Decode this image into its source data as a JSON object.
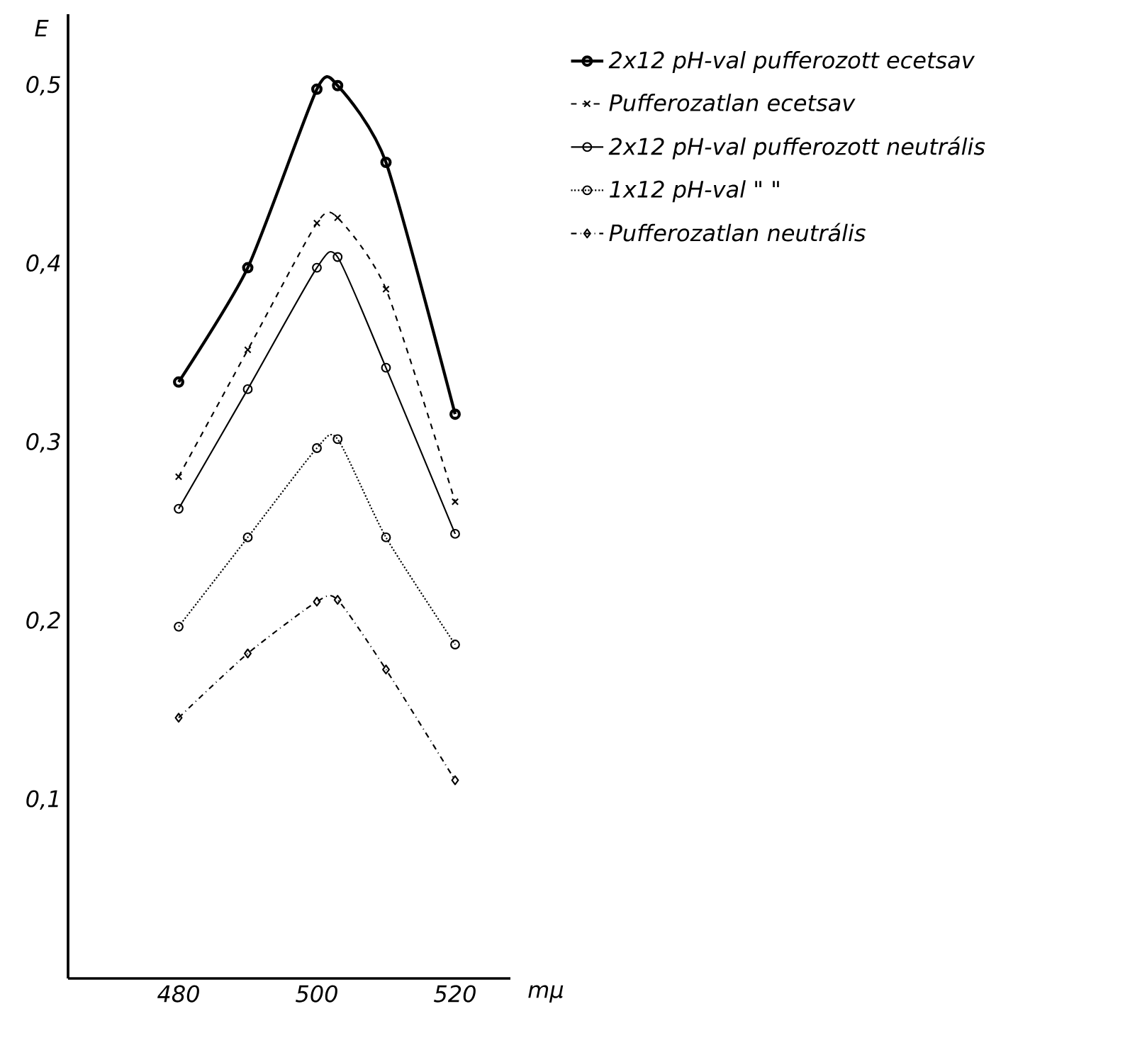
{
  "chart_data": {
    "type": "line",
    "xlabel": "mμ",
    "ylabel": "E",
    "x": [
      480,
      490,
      500,
      503,
      510,
      520
    ],
    "xlim": [
      464,
      528
    ],
    "ylim": [
      0,
      0.54
    ],
    "xticks": [
      480,
      500,
      520
    ],
    "yticks": [
      {
        "value": 0.1,
        "label": "0,1"
      },
      {
        "value": 0.2,
        "label": "0,2"
      },
      {
        "value": 0.3,
        "label": "0,3"
      },
      {
        "value": 0.4,
        "label": "0,4"
      },
      {
        "value": 0.5,
        "label": "0,5"
      }
    ],
    "grid": false,
    "legend": "top right",
    "series": [
      {
        "name": "2x12 pH-val pufferozott ecetsav",
        "color": "#000000",
        "marker": "circle",
        "line_style": "solid",
        "values": [
          0.334,
          0.398,
          0.498,
          0.5,
          0.457,
          0.316
        ]
      },
      {
        "name": "Pufferozatlan ecetsav",
        "color": "#000000",
        "marker": "cross",
        "line_style": "dashed",
        "values": [
          0.281,
          0.352,
          0.423,
          0.426,
          0.386,
          0.267
        ]
      },
      {
        "name": "2x12 pH-val pufferozott neutrális",
        "color": "#000000",
        "marker": "circle",
        "line_style": "solid",
        "values": [
          0.263,
          0.33,
          0.398,
          0.404,
          0.342,
          0.249
        ]
      },
      {
        "name": "1x12 pH-val      \"      \"",
        "color": "#000000",
        "marker": "circle",
        "line_style": "dotted",
        "values": [
          0.197,
          0.247,
          0.297,
          0.302,
          0.247,
          0.187
        ]
      },
      {
        "name": "Pufferozatlan neutrális",
        "color": "#000000",
        "marker": "diamond",
        "line_style": "dashdot",
        "values": [
          0.146,
          0.182,
          0.211,
          0.212,
          0.173,
          0.111
        ]
      }
    ]
  }
}
